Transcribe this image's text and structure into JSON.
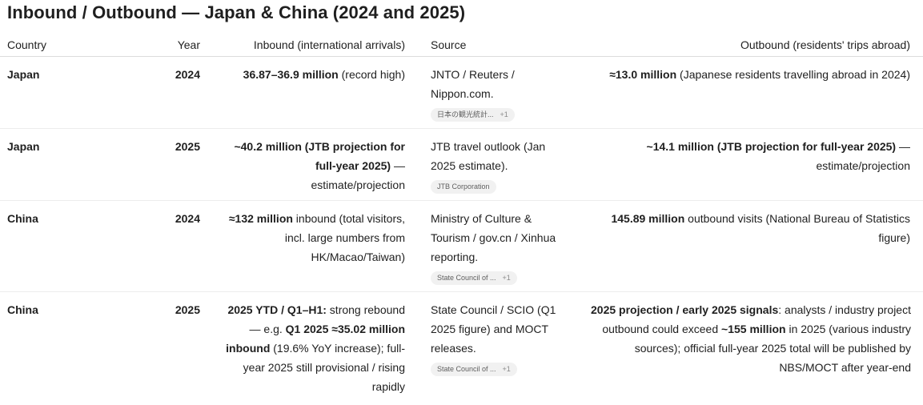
{
  "title": "Inbound / Outbound — Japan & China (2024 and 2025)",
  "headers": {
    "country": "Country",
    "year": "Year",
    "inbound": "Inbound (international arrivals)",
    "source": "Source",
    "outbound": "Outbound (residents' trips abroad)"
  },
  "rows": [
    {
      "country": "Japan",
      "year": "2024",
      "inbound_bold": "36.87–36.9 million",
      "inbound_rest": " (record high)",
      "source": "JNTO / Reuters / Nippon.com.",
      "chip": "日本の観光統計...",
      "chip_more": "+1",
      "outbound_bold": "≈13.0 million",
      "outbound_rest": " (Japanese residents travelling abroad in 2024)"
    },
    {
      "country": "Japan",
      "year": "2025",
      "inbound_bold": "~40.2 million (JTB projection for full-year 2025)",
      "inbound_rest": " — estimate/projection",
      "source": "JTB travel outlook (Jan 2025 estimate).",
      "chip": "JTB Corporation",
      "chip_more": "",
      "outbound_bold": "~14.1 million (JTB projection for full-year 2025)",
      "outbound_rest": " — estimate/projection"
    },
    {
      "country": "China",
      "year": "2024",
      "inbound_bold": "≈132 million",
      "inbound_rest": " inbound (total visitors, incl. large numbers from HK/Macao/Taiwan)",
      "source": "Ministry of Culture & Tourism / gov.cn / Xinhua reporting.",
      "chip": "State Council of ...",
      "chip_more": "+1",
      "outbound_bold": "145.89 million",
      "outbound_rest": " outbound visits (National Bureau of Statistics figure)"
    },
    {
      "country": "China",
      "year": "2025",
      "inbound_bold": "2025 YTD / Q1–H1:",
      "inbound_mid": " strong rebound — e.g. ",
      "inbound_bold2": "Q1 2025 ≈35.02 million inbound",
      "inbound_rest": " (19.6% YoY increase); full-year 2025 still provisional / rising rapidly",
      "source": "State Council / SCIO (Q1 2025 figure) and MOCT releases.",
      "chip": "State Council of ...",
      "chip_more": "+1",
      "outbound_bold": "2025 projection / early 2025 signals",
      "outbound_mid": ": analysts / industry project outbound could exceed ",
      "outbound_bold2": "~155 million",
      "outbound_rest": " in 2025 (various industry sources); official full-year 2025 total will be published by NBS/MOCT after year-end"
    }
  ]
}
